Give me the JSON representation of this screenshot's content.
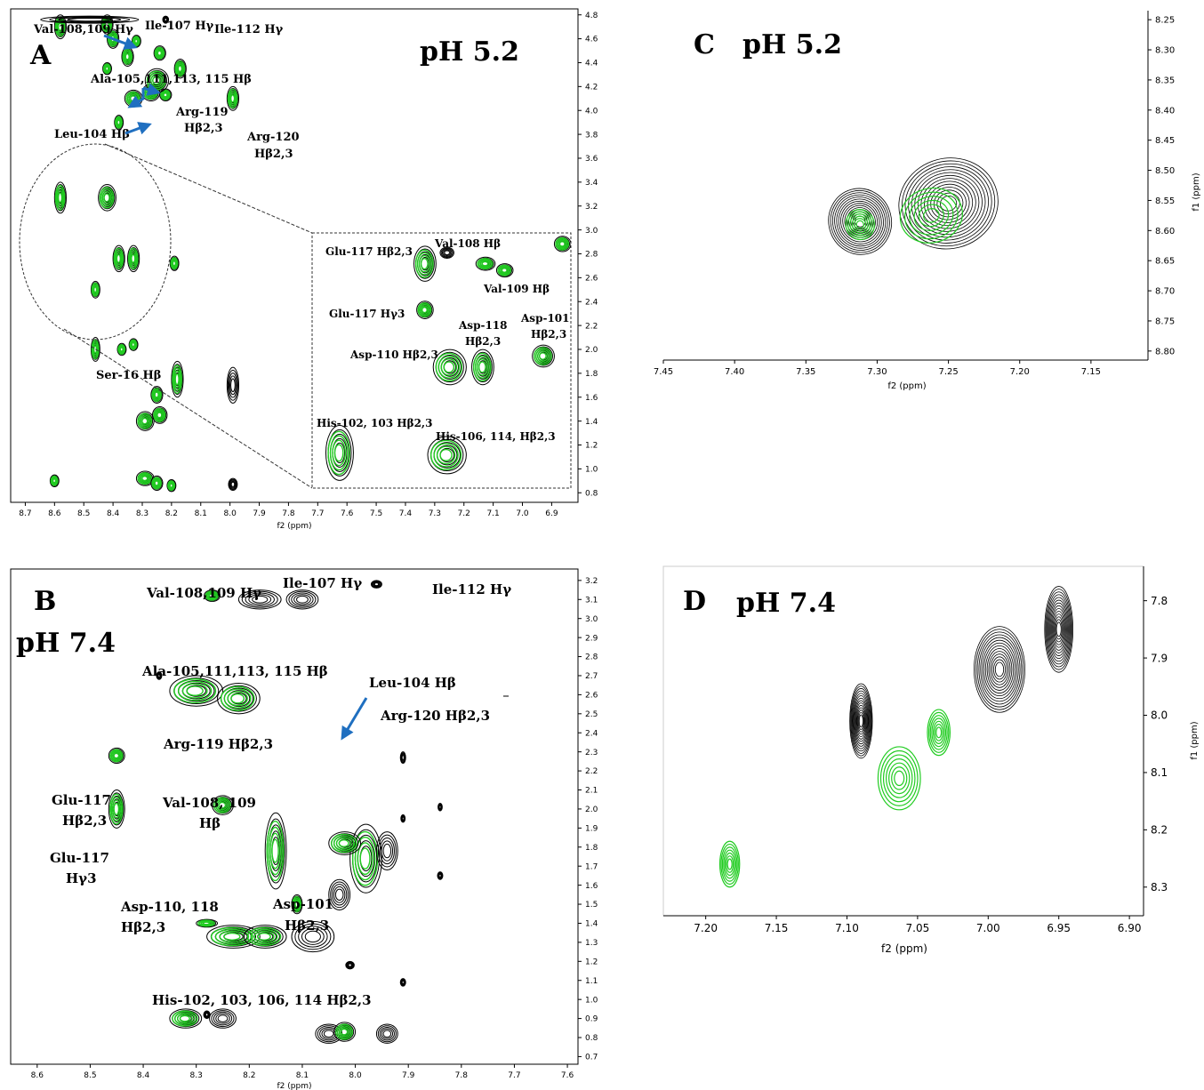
{
  "colors": {
    "ref": "#000000",
    "bound": "#22cc22",
    "arrow": "#1f6fc0"
  },
  "chart_data": [
    {
      "id": "A",
      "type": "contour",
      "panel_letter": "A",
      "title": "pH 5.2",
      "xlabel": "f2 (ppm)",
      "ylabel": "",
      "xlim": [
        8.75,
        6.81
      ],
      "ylim": [
        4.85,
        0.72
      ],
      "xticks": [
        "8.7",
        "8.6",
        "8.5",
        "8.4",
        "8.3",
        "8.2",
        "8.1",
        "8.0",
        "7.9",
        "7.8",
        "7.7",
        "7.6",
        "7.5",
        "7.4",
        "7.3",
        "7.2",
        "7.1",
        "7.0",
        "6.9"
      ],
      "yticks": [
        "0.8",
        "1.0",
        "1.2",
        "1.4",
        "1.6",
        "1.8",
        "2.0",
        "2.2",
        "2.4",
        "2.6",
        "2.8",
        "3.0",
        "3.2",
        "3.4",
        "3.6",
        "3.8",
        "4.0",
        "4.2",
        "4.4",
        "4.6",
        "4.8"
      ],
      "annotations": [
        {
          "text": "Val-108,109 Hγ"
        },
        {
          "text": "Ile-107 Hγ"
        },
        {
          "text": "Ile-112 Hγ"
        },
        {
          "text": "Ala-105,111,113, 115 Hβ"
        },
        {
          "text": "Arg-119"
        },
        {
          "text": "Hβ2,3"
        },
        {
          "text": "Arg-120"
        },
        {
          "text": "Hβ2,3"
        },
        {
          "text": "Leu-104 Hβ"
        },
        {
          "text": "Ser-16 Hβ"
        }
      ],
      "inset_annotations": [
        {
          "text": "Glu-117 Hβ2,3"
        },
        {
          "text": "Val-108 Hβ"
        },
        {
          "text": "Val-109 Hβ"
        },
        {
          "text": "Glu-117 Hγ3"
        },
        {
          "text": "Asp-118"
        },
        {
          "text": "Hβ2,3"
        },
        {
          "text": "Asp-101"
        },
        {
          "text": "Hβ2,3"
        },
        {
          "text": "Asp-110 Hβ2,3"
        },
        {
          "text": "His-102, 103 Hβ2,3"
        },
        {
          "text": "His-106, 114, Hβ2,3"
        }
      ],
      "peaks": [
        {
          "x": 8.29,
          "y": 0.92,
          "rx": 0.03,
          "ry": 0.06,
          "g": true
        },
        {
          "x": 8.25,
          "y": 0.88,
          "rx": 0.02,
          "ry": 0.06,
          "g": true
        },
        {
          "x": 8.6,
          "y": 0.9,
          "rx": 0.015,
          "ry": 0.05,
          "g": true
        },
        {
          "x": 8.2,
          "y": 0.86,
          "rx": 0.015,
          "ry": 0.05,
          "g": true
        },
        {
          "x": 7.99,
          "y": 0.87,
          "rx": 0.015,
          "ry": 0.05,
          "g": false
        },
        {
          "x": 8.29,
          "y": 1.4,
          "rx": 0.03,
          "ry": 0.08,
          "g": true
        },
        {
          "x": 8.24,
          "y": 1.45,
          "rx": 0.025,
          "ry": 0.07,
          "g": true
        },
        {
          "x": 8.25,
          "y": 1.62,
          "rx": 0.02,
          "ry": 0.07,
          "g": true
        },
        {
          "x": 8.18,
          "y": 1.75,
          "rx": 0.02,
          "ry": 0.15,
          "g": true
        },
        {
          "x": 7.99,
          "y": 1.7,
          "rx": 0.02,
          "ry": 0.15,
          "g": false
        },
        {
          "x": 7.28,
          "y": 1.68,
          "rx": 0.02,
          "ry": 0.12,
          "g": true
        },
        {
          "x": 7.2,
          "y": 1.7,
          "rx": 0.02,
          "ry": 0.12,
          "g": true
        },
        {
          "x": 8.46,
          "y": 2.0,
          "rx": 0.015,
          "ry": 0.1,
          "g": true
        },
        {
          "x": 8.37,
          "y": 2.0,
          "rx": 0.015,
          "ry": 0.05,
          "g": true
        },
        {
          "x": 8.33,
          "y": 2.04,
          "rx": 0.015,
          "ry": 0.05,
          "g": true
        },
        {
          "x": 8.46,
          "y": 2.5,
          "rx": 0.015,
          "ry": 0.07,
          "g": true
        },
        {
          "x": 7.26,
          "y": 2.22,
          "rx": 0.005,
          "ry": 0.03,
          "g": true
        },
        {
          "x": 8.38,
          "y": 2.76,
          "rx": 0.02,
          "ry": 0.11,
          "g": true
        },
        {
          "x": 8.33,
          "y": 2.76,
          "rx": 0.02,
          "ry": 0.11,
          "g": true
        },
        {
          "x": 8.19,
          "y": 2.72,
          "rx": 0.015,
          "ry": 0.06,
          "g": true
        },
        {
          "x": 8.58,
          "y": 3.27,
          "rx": 0.02,
          "ry": 0.13,
          "g": true
        },
        {
          "x": 8.42,
          "y": 3.27,
          "rx": 0.03,
          "ry": 0.11,
          "g": true
        },
        {
          "x": 8.38,
          "y": 3.9,
          "rx": 0.015,
          "ry": 0.06,
          "g": true
        },
        {
          "x": 8.33,
          "y": 4.1,
          "rx": 0.03,
          "ry": 0.07,
          "g": true
        },
        {
          "x": 8.27,
          "y": 4.15,
          "rx": 0.03,
          "ry": 0.07,
          "g": true
        },
        {
          "x": 8.22,
          "y": 4.13,
          "rx": 0.02,
          "ry": 0.05,
          "g": true
        },
        {
          "x": 7.99,
          "y": 4.1,
          "rx": 0.02,
          "ry": 0.1,
          "g": true
        },
        {
          "x": 8.25,
          "y": 4.25,
          "rx": 0.04,
          "ry": 0.1,
          "g": true
        },
        {
          "x": 8.17,
          "y": 4.35,
          "rx": 0.02,
          "ry": 0.08,
          "g": true
        },
        {
          "x": 8.42,
          "y": 4.35,
          "rx": 0.015,
          "ry": 0.05,
          "g": true
        },
        {
          "x": 8.35,
          "y": 4.45,
          "rx": 0.02,
          "ry": 0.08,
          "g": true
        },
        {
          "x": 8.24,
          "y": 4.48,
          "rx": 0.02,
          "ry": 0.06,
          "g": true
        },
        {
          "x": 8.4,
          "y": 4.6,
          "rx": 0.02,
          "ry": 0.08,
          "g": true
        },
        {
          "x": 8.32,
          "y": 4.58,
          "rx": 0.015,
          "ry": 0.05,
          "g": true
        },
        {
          "x": 8.58,
          "y": 4.7,
          "rx": 0.02,
          "ry": 0.1,
          "g": true
        },
        {
          "x": 8.42,
          "y": 4.72,
          "rx": 0.02,
          "ry": 0.08,
          "g": true
        },
        {
          "x": 8.22,
          "y": 4.76,
          "rx": 0.01,
          "ry": 0.03,
          "g": false
        }
      ],
      "inset_peaks": [
        {
          "x": 7.34,
          "y": 2.78,
          "rx": 0.04,
          "ry": 0.16,
          "g": true
        },
        {
          "x": 7.26,
          "y": 2.68,
          "rx": 0.025,
          "ry": 0.05,
          "g": false
        },
        {
          "x": 7.12,
          "y": 2.78,
          "rx": 0.035,
          "ry": 0.06,
          "g": true
        },
        {
          "x": 7.05,
          "y": 2.84,
          "rx": 0.03,
          "ry": 0.06,
          "g": true
        },
        {
          "x": 7.34,
          "y": 3.2,
          "rx": 0.03,
          "ry": 0.08,
          "g": true
        },
        {
          "x": 7.25,
          "y": 3.72,
          "rx": 0.06,
          "ry": 0.16,
          "g": true
        },
        {
          "x": 7.13,
          "y": 3.72,
          "rx": 0.04,
          "ry": 0.16,
          "g": true
        },
        {
          "x": 6.91,
          "y": 3.62,
          "rx": 0.04,
          "ry": 0.1,
          "g": true
        },
        {
          "x": 6.84,
          "y": 2.6,
          "rx": 0.03,
          "ry": 0.07,
          "g": true
        },
        {
          "x": 7.65,
          "y": 4.5,
          "rx": 0.05,
          "ry": 0.25,
          "g": true
        },
        {
          "x": 7.26,
          "y": 4.52,
          "rx": 0.07,
          "ry": 0.17,
          "g": true
        }
      ]
    },
    {
      "id": "B",
      "type": "contour",
      "panel_letter": "B",
      "title": "pH 7.4",
      "xlabel": "f2 (ppm)",
      "ylabel": "",
      "xlim": [
        8.65,
        7.58
      ],
      "ylim": [
        3.26,
        0.66
      ],
      "xticks": [
        "8.6",
        "8.5",
        "8.4",
        "8.3",
        "8.2",
        "8.1",
        "8.0",
        "7.9",
        "7.8",
        "7.7",
        "7.6"
      ],
      "yticks": [
        "0.7",
        "0.8",
        "0.9",
        "1.0",
        "1.1",
        "1.2",
        "1.3",
        "1.4",
        "1.5",
        "1.6",
        "1.7",
        "1.8",
        "1.9",
        "2.0",
        "2.1",
        "2.2",
        "2.3",
        "2.4",
        "2.5",
        "2.6",
        "2.7",
        "2.8",
        "2.9",
        "3.0",
        "3.1",
        "3.2"
      ],
      "annotations": [
        {
          "text": "Val-108,109 Hγ"
        },
        {
          "text": "Ile-107 Hγ"
        },
        {
          "text": "Ile-112 Hγ"
        },
        {
          "text": "Ala-105,111,113, 115 Hβ"
        },
        {
          "text": "Leu-104 Hβ"
        },
        {
          "text": "Arg-120 Hβ2,3"
        },
        {
          "text": "Arg-119 Hβ2,3"
        },
        {
          "text": "Glu-117"
        },
        {
          "text": "Hβ2,3"
        },
        {
          "text": "Val-108, 109"
        },
        {
          "text": "Hβ"
        },
        {
          "text": "Glu-117"
        },
        {
          "text": "Hγ3"
        },
        {
          "text": "Asp-110, 118"
        },
        {
          "text": "Hβ2,3"
        },
        {
          "text": "Asp-101"
        },
        {
          "text": "Hβ2,3"
        },
        {
          "text": "His-102, 103, 106, 114 Hβ2,3"
        }
      ],
      "peaks": [
        {
          "x": 8.32,
          "y": 0.9,
          "rx": 0.03,
          "ry": 0.05,
          "g": true
        },
        {
          "x": 8.25,
          "y": 0.9,
          "rx": 0.025,
          "ry": 0.05,
          "g": false
        },
        {
          "x": 8.05,
          "y": 0.82,
          "rx": 0.025,
          "ry": 0.05,
          "g": false
        },
        {
          "x": 8.02,
          "y": 0.83,
          "rx": 0.02,
          "ry": 0.05,
          "g": true
        },
        {
          "x": 7.94,
          "y": 0.82,
          "rx": 0.02,
          "ry": 0.05,
          "g": false
        },
        {
          "x": 8.28,
          "y": 0.92,
          "rx": 0.006,
          "ry": 0.02,
          "g": false
        },
        {
          "x": 8.01,
          "y": 1.18,
          "rx": 0.008,
          "ry": 0.02,
          "g": false
        },
        {
          "x": 7.91,
          "y": 1.09,
          "rx": 0.005,
          "ry": 0.02,
          "g": false
        },
        {
          "x": 8.23,
          "y": 1.33,
          "rx": 0.05,
          "ry": 0.06,
          "g": true
        },
        {
          "x": 8.17,
          "y": 1.33,
          "rx": 0.04,
          "ry": 0.06,
          "g": true
        },
        {
          "x": 8.08,
          "y": 1.33,
          "rx": 0.04,
          "ry": 0.08,
          "g": false
        },
        {
          "x": 8.28,
          "y": 1.4,
          "rx": 0.02,
          "ry": 0.02,
          "g": true
        },
        {
          "x": 8.11,
          "y": 1.5,
          "rx": 0.01,
          "ry": 0.05,
          "g": true
        },
        {
          "x": 8.03,
          "y": 1.55,
          "rx": 0.02,
          "ry": 0.08,
          "g": false
        },
        {
          "x": 8.15,
          "y": 1.78,
          "rx": 0.02,
          "ry": 0.2,
          "g": true
        },
        {
          "x": 7.98,
          "y": 1.74,
          "rx": 0.03,
          "ry": 0.18,
          "g": true
        },
        {
          "x": 8.02,
          "y": 1.82,
          "rx": 0.03,
          "ry": 0.06,
          "g": true
        },
        {
          "x": 7.94,
          "y": 1.78,
          "rx": 0.02,
          "ry": 0.1,
          "g": false
        },
        {
          "x": 7.84,
          "y": 1.65,
          "rx": 0.005,
          "ry": 0.02,
          "g": false
        },
        {
          "x": 7.91,
          "y": 1.95,
          "rx": 0.004,
          "ry": 0.02,
          "g": false
        },
        {
          "x": 7.84,
          "y": 2.01,
          "rx": 0.004,
          "ry": 0.02,
          "g": false
        },
        {
          "x": 8.45,
          "y": 2.0,
          "rx": 0.015,
          "ry": 0.1,
          "g": true
        },
        {
          "x": 8.25,
          "y": 2.02,
          "rx": 0.02,
          "ry": 0.05,
          "g": true
        },
        {
          "x": 8.45,
          "y": 2.28,
          "rx": 0.015,
          "ry": 0.04,
          "g": true
        },
        {
          "x": 7.91,
          "y": 2.27,
          "rx": 0.005,
          "ry": 0.03,
          "g": false
        },
        {
          "x": 8.3,
          "y": 2.62,
          "rx": 0.05,
          "ry": 0.08,
          "g": true
        },
        {
          "x": 8.22,
          "y": 2.58,
          "rx": 0.04,
          "ry": 0.08,
          "g": true
        },
        {
          "x": 8.37,
          "y": 2.7,
          "rx": 0.005,
          "ry": 0.02,
          "g": false
        },
        {
          "x": 8.27,
          "y": 3.12,
          "rx": 0.015,
          "ry": 0.03,
          "g": true
        },
        {
          "x": 8.18,
          "y": 3.1,
          "rx": 0.04,
          "ry": 0.05,
          "g": false
        },
        {
          "x": 8.1,
          "y": 3.1,
          "rx": 0.03,
          "ry": 0.05,
          "g": false
        },
        {
          "x": 7.96,
          "y": 3.18,
          "rx": 0.01,
          "ry": 0.02,
          "g": false
        }
      ]
    },
    {
      "id": "C",
      "type": "contour",
      "panel_letter": "C",
      "title": "pH 5.2",
      "xlabel": "f2 (ppm)",
      "ylabel": "f1 (ppm)",
      "xlim": [
        7.45,
        7.11
      ],
      "ylim": [
        8.235,
        8.815
      ],
      "xticks": [
        "7.45",
        "7.40",
        "7.35",
        "7.30",
        "7.25",
        "7.20",
        "7.15"
      ],
      "yticks": [
        "8.25",
        "8.30",
        "8.35",
        "8.40",
        "8.45",
        "8.50",
        "8.55",
        "8.60",
        "8.65",
        "8.70",
        "8.75",
        "8.80"
      ],
      "peaks": [
        {
          "x": 7.312,
          "y": 8.585,
          "rx": 0.022,
          "ry": 0.055,
          "g": false
        },
        {
          "x": 7.25,
          "y": 8.555,
          "rx": 0.035,
          "ry": 0.075,
          "g": false
        },
        {
          "x": 7.312,
          "y": 8.59,
          "rx": 0.01,
          "ry": 0.025,
          "g": true
        },
        {
          "x": 7.262,
          "y": 8.575,
          "rx": 0.022,
          "ry": 0.045,
          "g": true
        }
      ]
    },
    {
      "id": "D",
      "type": "contour",
      "panel_letter": "D",
      "title": "pH 7.4",
      "xlabel": "f2 (ppm)",
      "ylabel": "f1 (ppm)",
      "xlim": [
        7.23,
        6.89
      ],
      "ylim": [
        7.74,
        8.35
      ],
      "xticks": [
        "7.20",
        "7.15",
        "7.10",
        "7.05",
        "7.00",
        "6.95",
        "6.90"
      ],
      "yticks": [
        "7.8",
        "7.9",
        "8.0",
        "8.1",
        "8.2",
        "8.3"
      ],
      "peaks": [
        {
          "x": 7.09,
          "y": 8.01,
          "rx": 0.008,
          "ry": 0.065,
          "g": false
        },
        {
          "x": 6.992,
          "y": 7.92,
          "rx": 0.018,
          "ry": 0.075,
          "g": false
        },
        {
          "x": 6.95,
          "y": 7.85,
          "rx": 0.01,
          "ry": 0.075,
          "g": false
        },
        {
          "x": 7.063,
          "y": 8.11,
          "rx": 0.015,
          "ry": 0.055,
          "g": true
        },
        {
          "x": 7.035,
          "y": 8.03,
          "rx": 0.008,
          "ry": 0.04,
          "g": true
        },
        {
          "x": 7.183,
          "y": 8.26,
          "rx": 0.007,
          "ry": 0.04,
          "g": true
        }
      ]
    }
  ]
}
